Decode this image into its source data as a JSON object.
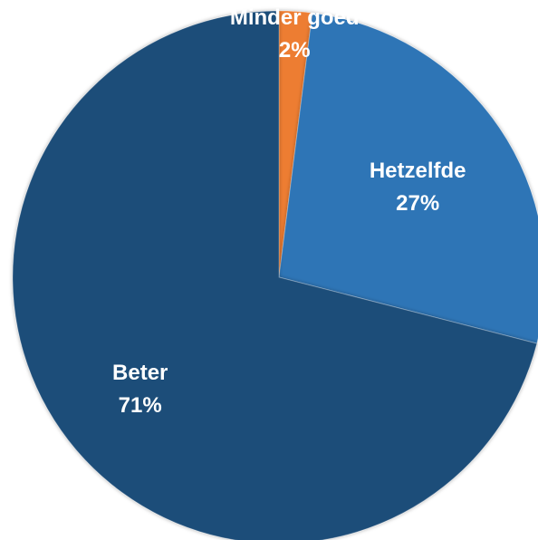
{
  "chart_data": {
    "type": "pie",
    "slices": [
      {
        "label": "Minder goed",
        "value": 2,
        "value_label": "2%",
        "color": "#ED7D31"
      },
      {
        "label": "Hetzelfde",
        "value": 27,
        "value_label": "27%",
        "color": "#2E75B6"
      },
      {
        "label": "Beter",
        "value": 71,
        "value_label": "71%",
        "color": "#1F4E79"
      }
    ],
    "start_angle": "12 o'clock",
    "direction": "clockwise",
    "legend": "none",
    "labels": "inside slices"
  }
}
